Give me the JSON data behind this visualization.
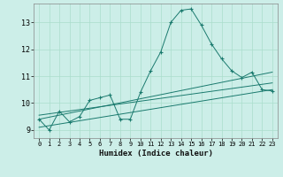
{
  "xlabel": "Humidex (Indice chaleur)",
  "background_color": "#cceee8",
  "grid_color": "#aaddcc",
  "line_color": "#1a7a6e",
  "xlim": [
    -0.5,
    23.5
  ],
  "ylim": [
    8.7,
    13.7
  ],
  "yticks": [
    9,
    10,
    11,
    12,
    13
  ],
  "xticks": [
    0,
    1,
    2,
    3,
    4,
    5,
    6,
    7,
    8,
    9,
    10,
    11,
    12,
    13,
    14,
    15,
    16,
    17,
    18,
    19,
    20,
    21,
    22,
    23
  ],
  "main_x": [
    0,
    1,
    2,
    3,
    4,
    5,
    6,
    7,
    8,
    9,
    10,
    11,
    12,
    13,
    14,
    15,
    16,
    17,
    18,
    19,
    20,
    21,
    22,
    23
  ],
  "main_y": [
    9.4,
    9.0,
    9.7,
    9.3,
    9.5,
    10.1,
    10.2,
    10.3,
    9.4,
    9.4,
    10.4,
    11.2,
    11.9,
    13.0,
    13.45,
    13.5,
    12.9,
    12.2,
    11.65,
    11.2,
    10.95,
    11.15,
    10.5,
    10.45
  ],
  "trend_lines": [
    {
      "x": [
        0,
        23
      ],
      "y": [
        9.1,
        10.5
      ]
    },
    {
      "x": [
        0,
        23
      ],
      "y": [
        9.4,
        11.15
      ]
    },
    {
      "x": [
        0,
        23
      ],
      "y": [
        9.55,
        10.75
      ]
    }
  ]
}
